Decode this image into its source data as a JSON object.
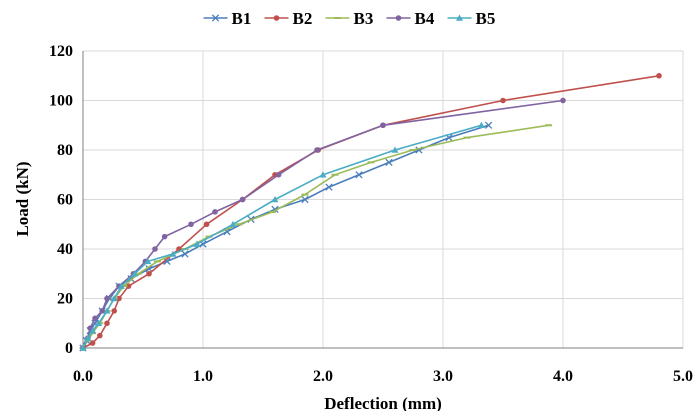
{
  "chart_data": {
    "type": "line",
    "title": "",
    "xlabel": "Deflection (mm)",
    "ylabel": "Load (kN)",
    "xlim": [
      0,
      5
    ],
    "ylim": [
      0,
      120
    ],
    "x_ticks": [
      "0.0",
      "1.0",
      "2.0",
      "3.0",
      "4.0",
      "5.0"
    ],
    "x_tick_values": [
      0,
      1,
      2,
      3,
      4,
      5
    ],
    "y_ticks": [
      "0",
      "20",
      "40",
      "60",
      "80",
      "100",
      "120"
    ],
    "y_tick_values": [
      0,
      20,
      40,
      60,
      80,
      100,
      120
    ],
    "grid": true,
    "legend_position": "top",
    "series": [
      {
        "name": "B1",
        "color": "#4a7ebb",
        "marker": "cross",
        "points": [
          [
            0,
            0
          ],
          [
            0.03,
            3
          ],
          [
            0.06,
            7
          ],
          [
            0.1,
            10
          ],
          [
            0.16,
            15
          ],
          [
            0.22,
            20
          ],
          [
            0.3,
            25
          ],
          [
            0.4,
            28
          ],
          [
            0.55,
            32
          ],
          [
            0.7,
            35
          ],
          [
            0.85,
            38
          ],
          [
            1.0,
            42
          ],
          [
            1.2,
            47
          ],
          [
            1.4,
            52
          ],
          [
            1.6,
            56
          ],
          [
            1.85,
            60
          ],
          [
            2.05,
            65
          ],
          [
            2.3,
            70
          ],
          [
            2.55,
            75
          ],
          [
            2.8,
            80
          ],
          [
            3.05,
            85
          ],
          [
            3.38,
            90
          ]
        ]
      },
      {
        "name": "B2",
        "color": "#c0504d",
        "marker": "circle",
        "points": [
          [
            0,
            0
          ],
          [
            0.08,
            2
          ],
          [
            0.14,
            5
          ],
          [
            0.2,
            10
          ],
          [
            0.26,
            15
          ],
          [
            0.3,
            20
          ],
          [
            0.38,
            25
          ],
          [
            0.55,
            30
          ],
          [
            0.8,
            40
          ],
          [
            1.03,
            50
          ],
          [
            1.33,
            60
          ],
          [
            1.6,
            70
          ],
          [
            1.96,
            80
          ],
          [
            2.5,
            90
          ],
          [
            3.5,
            100
          ],
          [
            4.8,
            110
          ]
        ]
      },
      {
        "name": "B3",
        "color": "#9bbb59",
        "marker": "dash",
        "points": [
          [
            0,
            0
          ],
          [
            0.04,
            3
          ],
          [
            0.08,
            6
          ],
          [
            0.14,
            10
          ],
          [
            0.2,
            15
          ],
          [
            0.26,
            20
          ],
          [
            0.34,
            25
          ],
          [
            0.46,
            30
          ],
          [
            0.62,
            35
          ],
          [
            0.85,
            40
          ],
          [
            1.05,
            45
          ],
          [
            1.3,
            50
          ],
          [
            1.58,
            55
          ],
          [
            1.85,
            62
          ],
          [
            2.1,
            70
          ],
          [
            2.4,
            75
          ],
          [
            2.75,
            80
          ],
          [
            3.2,
            85
          ],
          [
            3.88,
            90
          ]
        ]
      },
      {
        "name": "B4",
        "color": "#8064a2",
        "marker": "circle",
        "points": [
          [
            0,
            0
          ],
          [
            0.04,
            4
          ],
          [
            0.06,
            8
          ],
          [
            0.1,
            12
          ],
          [
            0.16,
            15
          ],
          [
            0.2,
            20
          ],
          [
            0.3,
            25
          ],
          [
            0.42,
            30
          ],
          [
            0.52,
            35
          ],
          [
            0.6,
            40
          ],
          [
            0.68,
            45
          ],
          [
            0.9,
            50
          ],
          [
            1.1,
            55
          ],
          [
            1.33,
            60
          ],
          [
            1.63,
            70
          ],
          [
            1.95,
            80
          ],
          [
            2.5,
            90
          ],
          [
            4.0,
            100
          ]
        ]
      },
      {
        "name": "B5",
        "color": "#4bacc6",
        "marker": "triangle",
        "points": [
          [
            0,
            0
          ],
          [
            0.04,
            4
          ],
          [
            0.08,
            7
          ],
          [
            0.13,
            10
          ],
          [
            0.2,
            15
          ],
          [
            0.26,
            20
          ],
          [
            0.32,
            25
          ],
          [
            0.43,
            30
          ],
          [
            0.54,
            35
          ],
          [
            0.75,
            38
          ],
          [
            0.95,
            42
          ],
          [
            1.25,
            50
          ],
          [
            1.6,
            60
          ],
          [
            2.0,
            70
          ],
          [
            2.6,
            80
          ],
          [
            3.32,
            90
          ]
        ]
      }
    ]
  }
}
